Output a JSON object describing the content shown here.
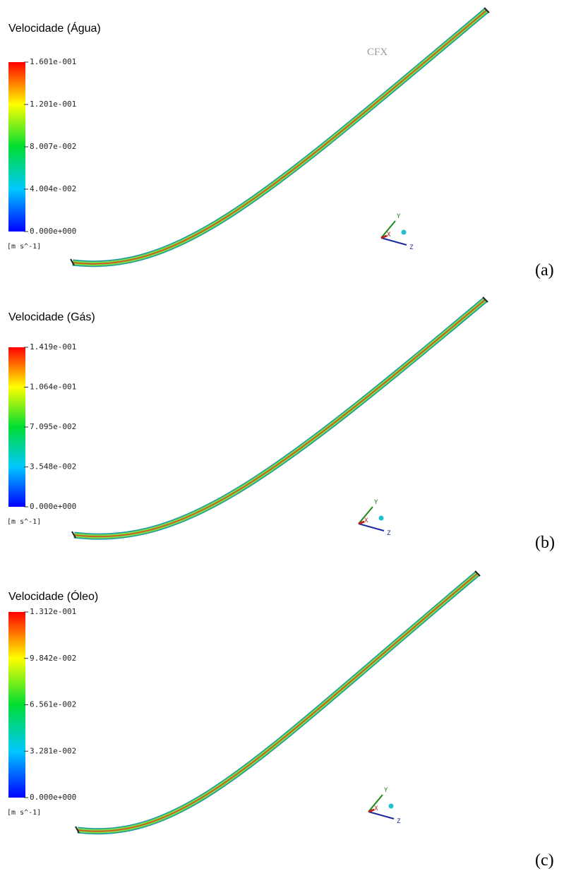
{
  "panels": [
    {
      "title": "Velocidade (Água)",
      "ticks": [
        "1.601e-001",
        "1.201e-001",
        "8.007e-002",
        "4.004e-002",
        "0.000e+000"
      ],
      "unit": "[m s^-1]",
      "axes": [
        "Y",
        "X",
        "Z"
      ],
      "caption": "(a)",
      "logo": "CFX"
    },
    {
      "title": "Velocidade (Gás)",
      "ticks": [
        "1.419e-001",
        "1.064e-001",
        "7.095e-002",
        "3.548e-002",
        "0.000e+000"
      ],
      "unit": "[m s^-1]",
      "axes": [
        "Y",
        "X",
        "Z"
      ],
      "caption": "(b)"
    },
    {
      "title": "Velocidade (Óleo)",
      "ticks": [
        "1.312e-001",
        "9.842e-002",
        "6.561e-002",
        "3.281e-002",
        "0.000e+000"
      ],
      "unit": "[m s^-1]",
      "axes": [
        "Y",
        "X",
        "Z"
      ],
      "caption": "(c)"
    }
  ]
}
